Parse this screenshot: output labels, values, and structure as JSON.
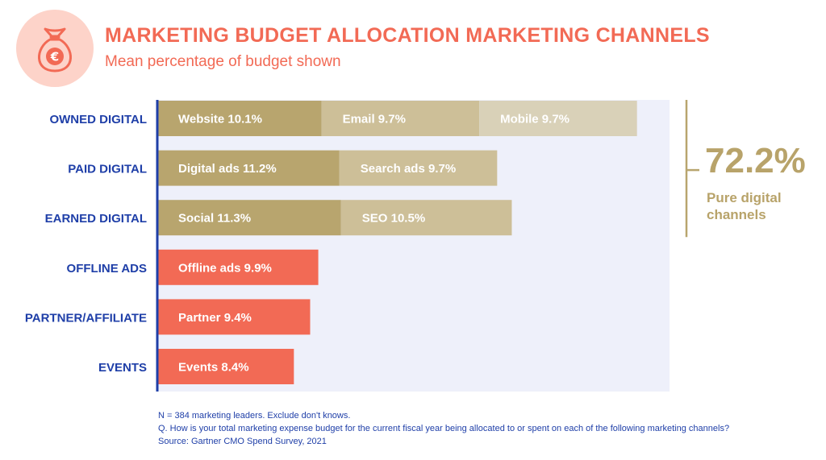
{
  "header": {
    "icon": "money-bag-euro-icon",
    "title": "MARKETING BUDGET ALLOCATION MARKETING CHANNELS",
    "subtitle": "Mean percentage of budget shown"
  },
  "colors": {
    "accent": "#f26a55",
    "icon_circle": "#fdd3c9",
    "dark_gold": "#b8a56e",
    "mid_gold": "#cdbf98",
    "light_gold": "#d9d1b8",
    "background_panel": "#eef0fa",
    "axis_blue": "#1f3fa8"
  },
  "chart_data": {
    "type": "bar",
    "orientation": "horizontal",
    "stacked": true,
    "title": "MARKETING BUDGET ALLOCATION MARKETING CHANNELS",
    "subtitle": "Mean percentage of budget shown",
    "unit": "%",
    "categories": [
      "OWNED DIGITAL",
      "PAID DIGITAL",
      "EARNED DIGITAL",
      "OFFLINE ADS",
      "PARTNER/AFFILIATE",
      "EVENTS"
    ],
    "rows": [
      {
        "category": "OWNED DIGITAL",
        "segments": [
          {
            "name": "Website",
            "value": 10.1,
            "label": "Website 10.1%",
            "color": "#b8a56e"
          },
          {
            "name": "Email",
            "value": 9.7,
            "label": "Email 9.7%",
            "color": "#cdbf98"
          },
          {
            "name": "Mobile",
            "value": 9.7,
            "label": "Mobile 9.7%",
            "color": "#d9d1b8"
          }
        ]
      },
      {
        "category": "PAID DIGITAL",
        "segments": [
          {
            "name": "Digital ads",
            "value": 11.2,
            "label": "Digital ads 11.2%",
            "color": "#b8a56e"
          },
          {
            "name": "Search ads",
            "value": 9.7,
            "label": "Search ads 9.7%",
            "color": "#cdbf98"
          }
        ]
      },
      {
        "category": "EARNED DIGITAL",
        "segments": [
          {
            "name": "Social",
            "value": 11.3,
            "label": "Social 11.3%",
            "color": "#b8a56e"
          },
          {
            "name": "SEO",
            "value": 10.5,
            "label": "SEO 10.5%",
            "color": "#cdbf98"
          }
        ]
      },
      {
        "category": "OFFLINE ADS",
        "segments": [
          {
            "name": "Offline ads",
            "value": 9.9,
            "label": "Offline ads 9.9%",
            "color": "#f26a55"
          }
        ]
      },
      {
        "category": "PARTNER/AFFILIATE",
        "segments": [
          {
            "name": "Partner",
            "value": 9.4,
            "label": "Partner 9.4%",
            "color": "#f26a55"
          }
        ]
      },
      {
        "category": "EVENTS",
        "segments": [
          {
            "name": "Events",
            "value": 8.4,
            "label": "Events 8.4%",
            "color": "#f26a55"
          }
        ]
      }
    ],
    "xlim": [
      0,
      31.5
    ],
    "bracket": {
      "value": "72.2%",
      "label": "Pure digital channels",
      "spans_categories": [
        "OWNED DIGITAL",
        "PAID DIGITAL",
        "EARNED DIGITAL"
      ]
    }
  },
  "footer": {
    "n_note": "N = 384 marketing leaders. Exclude don't knows.",
    "question": "Q. How is your total marketing expense budget for the current fiscal year being allocated to or spent on each of the following marketing channels?",
    "source": "Source: Gartner CMO Spend Survey, 2021"
  }
}
